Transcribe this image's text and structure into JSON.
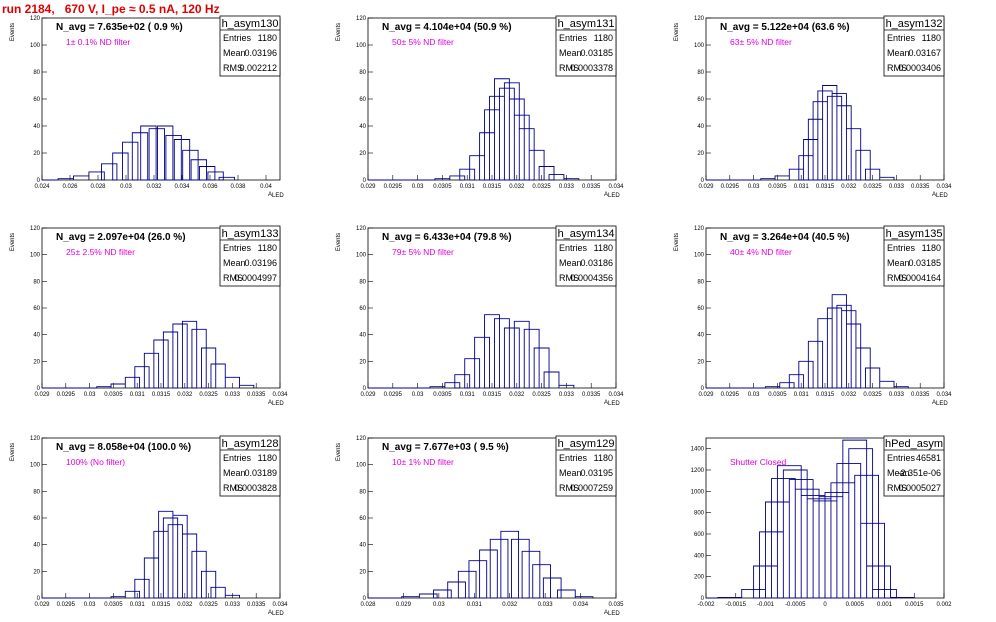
{
  "title": "run 2184,   670 V, I_pe ≈ 0.5 nA, 120 Hz",
  "chart_data": [
    {
      "type": "histogram",
      "name": "h_asym130",
      "navg": "N_avg = 7.635e+02 ( 0.9 %)",
      "annotation": "1± 0.1% ND filter",
      "stats": {
        "Entries": "1180",
        "Mean": "0.03196",
        "RMS": "0.002212"
      },
      "ylabel": "Events",
      "xlabel": "A",
      "xlabel_sub": "LED",
      "xlim": [
        0.024,
        0.041
      ],
      "ylim": [
        0,
        120
      ],
      "xticks": [
        "0.024",
        "0.026",
        "0.028",
        "0.03",
        "0.032",
        "0.034",
        "0.036",
        "0.038",
        "0.04"
      ],
      "xtick_vals": [
        0.024,
        0.026,
        0.028,
        0.03,
        0.032,
        0.034,
        0.036,
        0.038,
        0.04
      ],
      "yticks": [
        "0",
        "20",
        "40",
        "60",
        "80",
        "100",
        "120"
      ],
      "ytick_vals": [
        0,
        20,
        40,
        60,
        80,
        100,
        120
      ],
      "x": [
        0.0257,
        0.0268,
        0.0279,
        0.0288,
        0.0296,
        0.0303,
        0.031,
        0.0316,
        0.0322,
        0.0328,
        0.0334,
        0.034,
        0.0346,
        0.0352,
        0.0358,
        0.0364,
        0.0372
      ],
      "values": [
        1,
        3,
        6,
        12,
        20,
        28,
        35,
        40,
        38,
        40,
        33,
        30,
        22,
        15,
        10,
        6,
        2
      ]
    },
    {
      "type": "histogram",
      "name": "h_asym131",
      "navg": "N_avg = 4.104e+04 (50.9 %)",
      "annotation": "50± 5% ND filter",
      "stats": {
        "Entries": "1180",
        "Mean": "0.03185",
        "RMS": "0.0003378"
      },
      "ylabel": "Events",
      "xlabel": "A",
      "xlabel_sub": "LED",
      "xlim": [
        0.029,
        0.034
      ],
      "ylim": [
        0,
        120
      ],
      "xticks": [
        "0.029",
        "0.0295",
        "0.03",
        "0.0305",
        "0.031",
        "0.0315",
        "0.032",
        "0.0325",
        "0.033",
        "0.0335",
        "0.034"
      ],
      "xtick_vals": [
        0.029,
        0.0295,
        0.03,
        0.0305,
        0.031,
        0.0315,
        0.032,
        0.0325,
        0.033,
        0.0335,
        0.034
      ],
      "yticks": [
        "0",
        "20",
        "40",
        "60",
        "80",
        "100",
        "120"
      ],
      "ytick_vals": [
        0,
        20,
        40,
        60,
        80,
        100,
        120
      ],
      "x": [
        0.0305,
        0.0308,
        0.031,
        0.0312,
        0.0314,
        0.0315,
        0.0316,
        0.0317,
        0.0318,
        0.0319,
        0.032,
        0.0321,
        0.0322,
        0.0324,
        0.0326,
        0.0328,
        0.0331
      ],
      "values": [
        1,
        3,
        8,
        18,
        35,
        52,
        62,
        75,
        68,
        72,
        60,
        48,
        38,
        22,
        10,
        4,
        1
      ]
    },
    {
      "type": "histogram",
      "name": "h_asym132",
      "navg": "N_avg = 5.122e+04 (63.6 %)",
      "annotation": "63± 5% ND filter",
      "stats": {
        "Entries": "1180",
        "Mean": "0.03167",
        "RMS": "0.0003406"
      },
      "ylabel": "Events",
      "xlabel": "A",
      "xlabel_sub": "LED",
      "xlim": [
        0.029,
        0.034
      ],
      "ylim": [
        0,
        120
      ],
      "xticks": [
        "0.029",
        "0.0295",
        "0.03",
        "0.0305",
        "0.031",
        "0.0315",
        "0.032",
        "0.0325",
        "0.033",
        "0.0335",
        "0.034"
      ],
      "xtick_vals": [
        0.029,
        0.0295,
        0.03,
        0.0305,
        0.031,
        0.0315,
        0.032,
        0.0325,
        0.033,
        0.0335,
        0.034
      ],
      "yticks": [
        "0",
        "20",
        "40",
        "60",
        "80",
        "100",
        "120"
      ],
      "ytick_vals": [
        0,
        20,
        40,
        60,
        80,
        100,
        120
      ],
      "x": [
        0.0303,
        0.0306,
        0.0309,
        0.0311,
        0.0312,
        0.0313,
        0.0314,
        0.0315,
        0.0316,
        0.0317,
        0.0318,
        0.0319,
        0.0321,
        0.0323,
        0.0325,
        0.0328
      ],
      "values": [
        1,
        3,
        8,
        18,
        30,
        45,
        58,
        66,
        70,
        62,
        64,
        55,
        38,
        22,
        8,
        2
      ]
    },
    {
      "type": "histogram",
      "name": "h_asym133",
      "navg": "N_avg = 2.097e+04 (26.0 %)",
      "annotation": "25± 2.5% ND filter",
      "stats": {
        "Entries": "1180",
        "Mean": "0.03196",
        "RMS": "0.0004997"
      },
      "ylabel": "Events",
      "xlabel": "A",
      "xlabel_sub": "LED",
      "xlim": [
        0.029,
        0.034
      ],
      "ylim": [
        0,
        120
      ],
      "xticks": [
        "0.029",
        "0.0295",
        "0.03",
        "0.0305",
        "0.031",
        "0.0315",
        "0.032",
        "0.0325",
        "0.033",
        "0.0335",
        "0.034"
      ],
      "xtick_vals": [
        0.029,
        0.0295,
        0.03,
        0.0305,
        0.031,
        0.0315,
        0.032,
        0.0325,
        0.033,
        0.0335,
        0.034
      ],
      "yticks": [
        "0",
        "20",
        "40",
        "60",
        "80",
        "100",
        "120"
      ],
      "ytick_vals": [
        0,
        20,
        40,
        60,
        80,
        100,
        120
      ],
      "x": [
        0.0303,
        0.0306,
        0.0309,
        0.0311,
        0.0313,
        0.0315,
        0.0317,
        0.0319,
        0.0321,
        0.0323,
        0.0325,
        0.0327,
        0.033,
        0.0333
      ],
      "values": [
        1,
        3,
        8,
        16,
        26,
        36,
        42,
        48,
        50,
        44,
        30,
        18,
        8,
        2
      ]
    },
    {
      "type": "histogram",
      "name": "h_asym134",
      "navg": "N_avg = 6.433e+04 (79.8 %)",
      "annotation": "79± 5% ND filter",
      "stats": {
        "Entries": "1180",
        "Mean": "0.03186",
        "RMS": "0.0004356"
      },
      "ylabel": "Events",
      "xlabel": "A",
      "xlabel_sub": "LED",
      "xlim": [
        0.029,
        0.034
      ],
      "ylim": [
        0,
        120
      ],
      "xticks": [
        "0.029",
        "0.0295",
        "0.03",
        "0.0305",
        "0.031",
        "0.0315",
        "0.032",
        "0.0325",
        "0.033",
        "0.0335",
        "0.034"
      ],
      "xtick_vals": [
        0.029,
        0.0295,
        0.03,
        0.0305,
        0.031,
        0.0315,
        0.032,
        0.0325,
        0.033,
        0.0335,
        0.034
      ],
      "yticks": [
        "0",
        "20",
        "40",
        "60",
        "80",
        "100",
        "120"
      ],
      "ytick_vals": [
        0,
        20,
        40,
        60,
        80,
        100,
        120
      ],
      "x": [
        0.0304,
        0.0307,
        0.0309,
        0.0311,
        0.0313,
        0.0315,
        0.0317,
        0.0319,
        0.0321,
        0.0323,
        0.0325,
        0.0327,
        0.033
      ],
      "values": [
        1,
        4,
        10,
        22,
        38,
        55,
        52,
        45,
        50,
        44,
        30,
        12,
        2
      ]
    },
    {
      "type": "histogram",
      "name": "h_asym135",
      "navg": "N_avg = 3.264e+04 (40.5 %)",
      "annotation": "40± 4% ND filter",
      "stats": {
        "Entries": "1180",
        "Mean": "0.03185",
        "RMS": "0.0004164"
      },
      "ylabel": "Events",
      "xlabel": "A",
      "xlabel_sub": "LED",
      "xlim": [
        0.029,
        0.034
      ],
      "ylim": [
        0,
        120
      ],
      "xticks": [
        "0.029",
        "0.0295",
        "0.03",
        "0.0305",
        "0.031",
        "0.0315",
        "0.032",
        "0.0325",
        "0.033",
        "0.0335",
        "0.034"
      ],
      "xtick_vals": [
        0.029,
        0.0295,
        0.03,
        0.0305,
        0.031,
        0.0315,
        0.032,
        0.0325,
        0.033,
        0.0335,
        0.034
      ],
      "yticks": [
        "0",
        "20",
        "40",
        "60",
        "80",
        "100",
        "120"
      ],
      "ytick_vals": [
        0,
        20,
        40,
        60,
        80,
        100,
        120
      ],
      "x": [
        0.0304,
        0.0307,
        0.0309,
        0.0311,
        0.0313,
        0.0315,
        0.0317,
        0.0318,
        0.0319,
        0.032,
        0.0321,
        0.0323,
        0.0325,
        0.0328,
        0.0331
      ],
      "values": [
        1,
        4,
        10,
        20,
        35,
        52,
        60,
        70,
        62,
        58,
        48,
        30,
        15,
        5,
        1
      ]
    },
    {
      "type": "histogram",
      "name": "h_asym128",
      "navg": "N_avg = 8.058e+04 (100.0 %)",
      "annotation": "100% (No filter)",
      "stats": {
        "Entries": "1180",
        "Mean": "0.03189",
        "RMS": "0.0003828"
      },
      "ylabel": "Events",
      "xlabel": "A",
      "xlabel_sub": "LED",
      "xlim": [
        0.029,
        0.034
      ],
      "ylim": [
        0,
        120
      ],
      "xticks": [
        "0.029",
        "0.0295",
        "0.03",
        "0.0305",
        "0.031",
        "0.0315",
        "0.032",
        "0.0325",
        "0.033",
        "0.0335",
        "0.034"
      ],
      "xtick_vals": [
        0.029,
        0.0295,
        0.03,
        0.0305,
        0.031,
        0.0315,
        0.032,
        0.0325,
        0.033,
        0.0335,
        0.034
      ],
      "yticks": [
        "0",
        "20",
        "40",
        "60",
        "80",
        "100",
        "120"
      ],
      "ytick_vals": [
        0,
        20,
        40,
        60,
        80,
        100,
        120
      ],
      "x": [
        0.0306,
        0.0309,
        0.0311,
        0.0313,
        0.0315,
        0.0316,
        0.0317,
        0.0318,
        0.0319,
        0.0321,
        0.0323,
        0.0325,
        0.0327,
        0.033
      ],
      "values": [
        1,
        5,
        14,
        30,
        50,
        65,
        60,
        55,
        62,
        48,
        35,
        20,
        8,
        2
      ]
    },
    {
      "type": "histogram",
      "name": "h_asym129",
      "navg": "N_avg = 7.677e+03 ( 9.5 %)",
      "annotation": "10± 1% ND filter",
      "stats": {
        "Entries": "1180",
        "Mean": "0.03195",
        "RMS": "0.0007259"
      },
      "ylabel": "Events",
      "xlabel": "A",
      "xlabel_sub": "LED",
      "xlim": [
        0.028,
        0.035
      ],
      "ylim": [
        0,
        120
      ],
      "xticks": [
        "0.028",
        "0.029",
        "0.03",
        "0.031",
        "0.032",
        "0.033",
        "0.034",
        "0.035"
      ],
      "xtick_vals": [
        0.028,
        0.029,
        0.03,
        0.031,
        0.032,
        0.033,
        0.034,
        0.035
      ],
      "yticks": [
        "0",
        "20",
        "40",
        "60",
        "80",
        "100",
        "120"
      ],
      "ytick_vals": [
        0,
        20,
        40,
        60,
        80,
        100,
        120
      ],
      "x": [
        0.0292,
        0.0297,
        0.0301,
        0.0305,
        0.0308,
        0.0311,
        0.0314,
        0.0317,
        0.032,
        0.0323,
        0.0326,
        0.0329,
        0.0332,
        0.0336,
        0.0341
      ],
      "values": [
        1,
        3,
        6,
        12,
        20,
        28,
        36,
        44,
        50,
        44,
        35,
        25,
        15,
        6,
        1
      ]
    },
    {
      "type": "histogram",
      "name": "hPed_asym",
      "navg": "",
      "annotation": "Shutter Closed",
      "stats": {
        "Entries": "46581",
        "Mean": "-2.351e-06",
        "RMS": "0.0005027"
      },
      "ylabel": "",
      "xlabel": "",
      "xlabel_sub": "",
      "xlim": [
        -0.002,
        0.002
      ],
      "ylim": [
        0,
        1500
      ],
      "xticks": [
        "-0.002",
        "-0.0015",
        "-0.001",
        "-0.0005",
        "0",
        "0.0005",
        "0.001",
        "0.0015",
        "0.002"
      ],
      "xtick_vals": [
        -0.002,
        -0.0015,
        -0.001,
        -0.0005,
        0,
        0.0005,
        0.001,
        0.0015,
        0.002
      ],
      "yticks": [
        "0",
        "200",
        "400",
        "600",
        "800",
        "1000",
        "1200",
        "1400"
      ],
      "ytick_vals": [
        0,
        200,
        400,
        600,
        800,
        1000,
        1200,
        1400
      ],
      "x": [
        -0.0016,
        -0.0012,
        -0.001,
        -0.0009,
        -0.0008,
        -0.0007,
        -0.0006,
        -0.0005,
        -0.0004,
        -0.0003,
        -0.0002,
        -0.0001,
        0.0,
        0.0001,
        0.0002,
        0.0003,
        0.0004,
        0.0005,
        0.0006,
        0.0007,
        0.0008,
        0.0009,
        0.001,
        0.0013
      ],
      "values": [
        5,
        80,
        300,
        620,
        900,
        1120,
        1240,
        1200,
        1110,
        1020,
        960,
        930,
        910,
        950,
        990,
        1080,
        1260,
        1480,
        1400,
        1150,
        700,
        300,
        80,
        5
      ]
    }
  ]
}
